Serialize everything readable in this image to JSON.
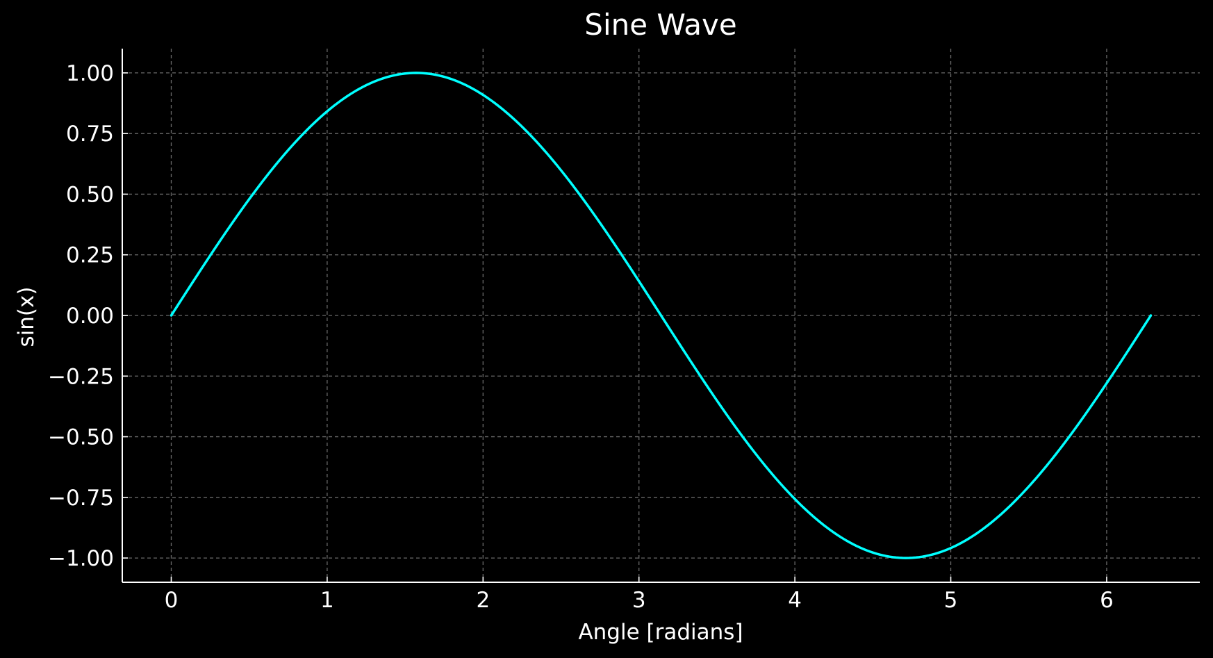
{
  "chart_data": {
    "type": "line",
    "title": "Sine Wave",
    "xlabel": "Angle [radians]",
    "ylabel": "sin(x)",
    "xlim": [
      -0.31416,
      6.59734
    ],
    "ylim": [
      -1.1,
      1.1
    ],
    "x_ticks": [
      0,
      1,
      2,
      3,
      4,
      5,
      6
    ],
    "x_tick_labels": [
      "0",
      "1",
      "2",
      "3",
      "4",
      "5",
      "6"
    ],
    "y_ticks": [
      1.0,
      0.75,
      0.5,
      0.25,
      0.0,
      -0.25,
      -0.5,
      -0.75,
      -1.0
    ],
    "y_tick_labels": [
      "1.00",
      "0.75",
      "0.50",
      "0.25",
      "0.00",
      "−0.25",
      "−0.50",
      "−0.75",
      "−1.00"
    ],
    "grid": true,
    "series": [
      {
        "function": "sin(x)",
        "x_start": 0,
        "x_end": 6.283185,
        "color": "#00ffff",
        "x": [
          0,
          0.5236,
          1.0472,
          1.5708,
          2.0944,
          2.618,
          3.1416,
          3.6652,
          4.1888,
          4.7124,
          5.236,
          5.7596,
          6.2832
        ],
        "y": [
          0,
          0.5,
          0.866,
          1.0,
          0.866,
          0.5,
          0,
          -0.5,
          -0.866,
          -1.0,
          -0.866,
          -0.5,
          0
        ]
      }
    ]
  },
  "colors": {
    "background": "#000000",
    "foreground": "#ffffff",
    "grid": "#6a6a6a",
    "line": "#00ffff"
  }
}
